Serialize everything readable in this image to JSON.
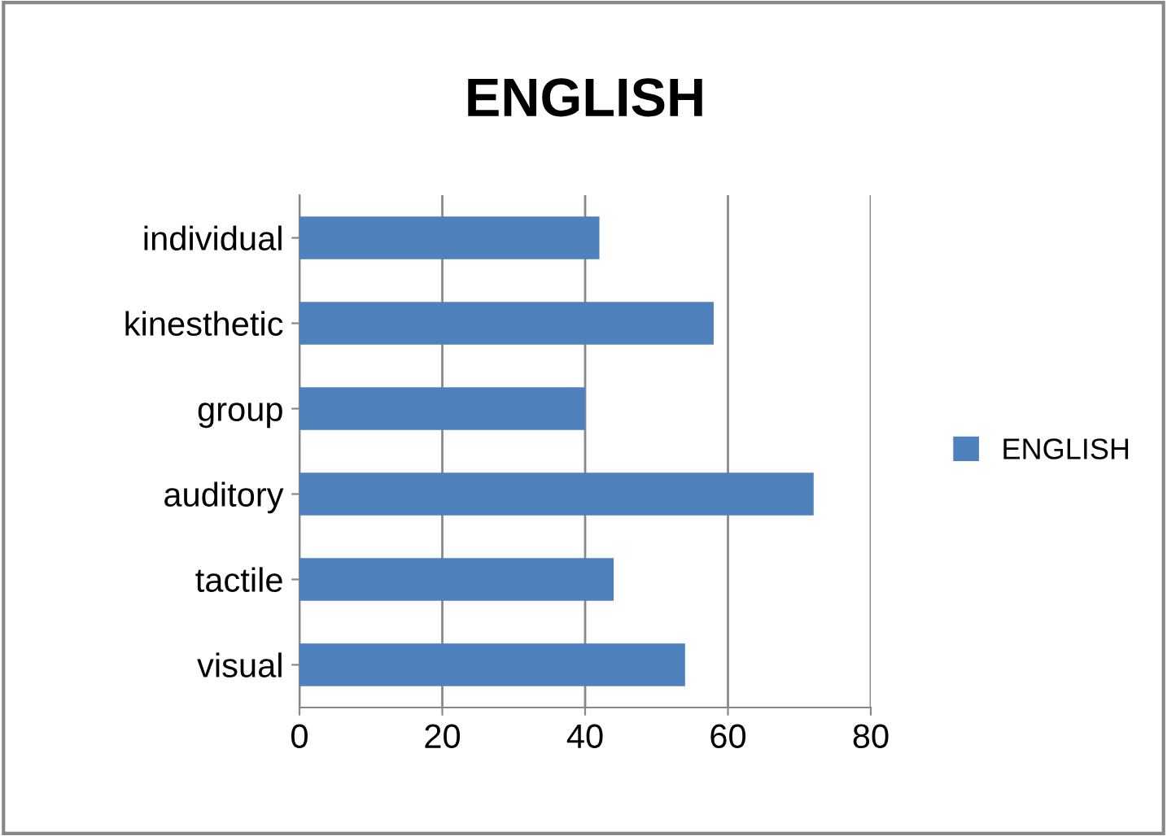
{
  "chart_data": {
    "type": "bar",
    "orientation": "horizontal",
    "title": "ENGLISH",
    "categories": [
      "individual",
      "kinesthetic",
      "group",
      "auditory",
      "tactile",
      "visual"
    ],
    "series": [
      {
        "name": "ENGLISH",
        "color": "#4f81bd",
        "values": [
          42,
          58,
          40,
          72,
          44,
          54
        ]
      }
    ],
    "xlim": [
      0,
      80
    ],
    "xticks": [
      0,
      20,
      40,
      60,
      80
    ],
    "grid": "x",
    "legend": "right"
  }
}
